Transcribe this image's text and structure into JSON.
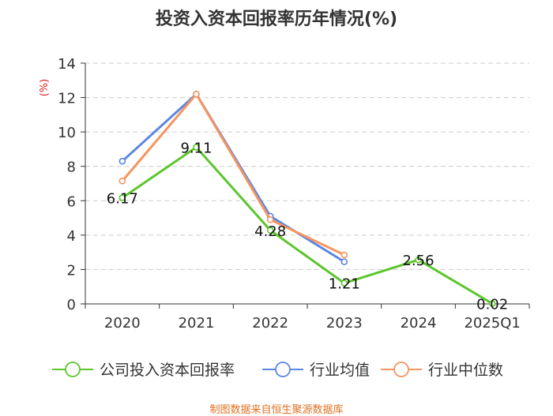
{
  "chart_data": {
    "type": "line",
    "title": "投资入资本回报率历年情况(%)",
    "ylabel": "(%)",
    "categories": [
      "2020",
      "2021",
      "2022",
      "2023",
      "2024",
      "2025Q1"
    ],
    "ylim": [
      0,
      14
    ],
    "yticks": [
      0,
      2,
      4,
      6,
      8,
      10,
      12,
      14
    ],
    "series": [
      {
        "name": "公司投入资本回报率",
        "color": "#5cc62c",
        "values": [
          6.17,
          9.11,
          4.28,
          1.21,
          2.56,
          0.02
        ],
        "labels": [
          "6.17",
          "9.11",
          "4.28",
          "1.21",
          "2.56",
          "0.02"
        ]
      },
      {
        "name": "行业均值",
        "color": "#5b86e3",
        "values": [
          8.3,
          12.2,
          5.1,
          2.45,
          null,
          null
        ]
      },
      {
        "name": "行业中位数",
        "color": "#f5955f",
        "values": [
          7.15,
          12.2,
          4.9,
          2.85,
          null,
          null
        ]
      }
    ]
  },
  "source_text": "制图数据来自恒生聚源数据库",
  "colors": {
    "ylabel": "#e02020",
    "source": "#e07020",
    "axis": "#333333",
    "grid": "#cccccc"
  }
}
